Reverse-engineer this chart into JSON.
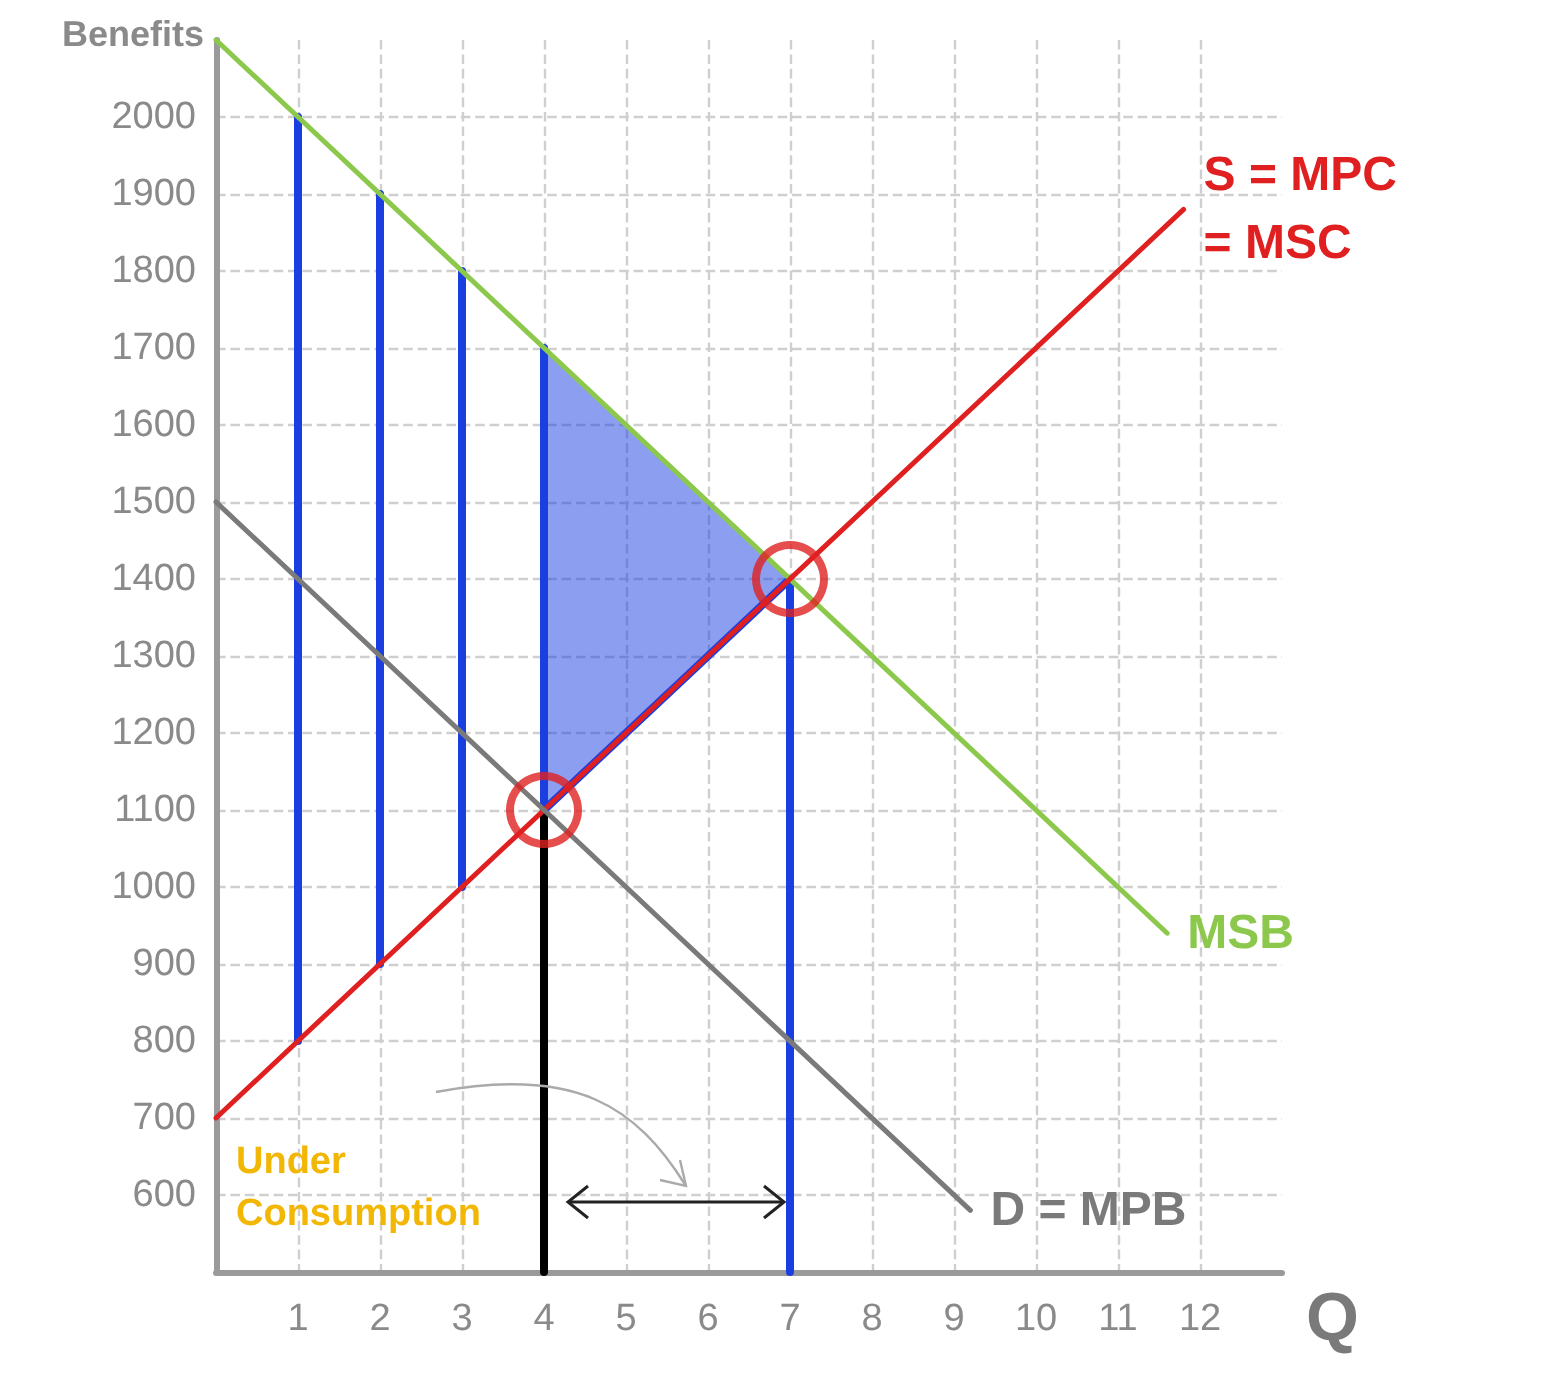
{
  "chart_data": {
    "type": "line",
    "xlabel": "Q",
    "ylabel": "Benefits",
    "xlim": [
      0,
      13
    ],
    "xticks": [
      1,
      2,
      3,
      4,
      5,
      6,
      7,
      8,
      9,
      10,
      11,
      12
    ],
    "ylim": [
      500,
      2100
    ],
    "yticks": [
      600,
      700,
      800,
      900,
      1000,
      1100,
      1200,
      1300,
      1400,
      1500,
      1600,
      1700,
      1800,
      1900,
      2000
    ],
    "grid": true,
    "legend": false,
    "marker": "none",
    "annotations": [
      "Under Consumption"
    ],
    "series": [
      {
        "x": [
          4,
          7
        ],
        "values": [
          1100,
          1400
        ],
        "lower": [
          1100,
          1400
        ],
        "upper": [
          1700,
          1400
        ],
        "color": "#1a3ee0"
      },
      {
        "x": [
          1,
          1,
          1.5,
          2,
          2,
          2.5,
          3,
          3,
          3.5,
          4,
          4,
          5.5,
          7,
          7
        ],
        "values": [
          800,
          2000,
          null,
          900,
          1900,
          null,
          1000,
          1800,
          null,
          1100,
          1700,
          null,
          500,
          1400
        ],
        "color": "#1a3ee0"
      },
      {
        "x": [
          4,
          4
        ],
        "values": [
          500,
          1100
        ],
        "color": "#000000"
      },
      {
        "name": "MSB",
        "x": [
          0,
          11.6
        ],
        "values": [
          2100,
          940
        ],
        "color": "#8cc84b"
      },
      {
        "name": "S = MPC = MSC",
        "x": [
          0,
          11.8
        ],
        "values": [
          700,
          1880
        ],
        "color": "#e02020"
      },
      {
        "name": "D = MPB",
        "x": [
          0,
          9.2
        ],
        "values": [
          1500,
          580
        ],
        "color": "#7a7a7a"
      },
      {
        "type": "scatter",
        "marker": "circle",
        "x": [
          4,
          7
        ],
        "values": [
          1100,
          1400
        ],
        "color": "#e02020"
      }
    ]
  }
}
